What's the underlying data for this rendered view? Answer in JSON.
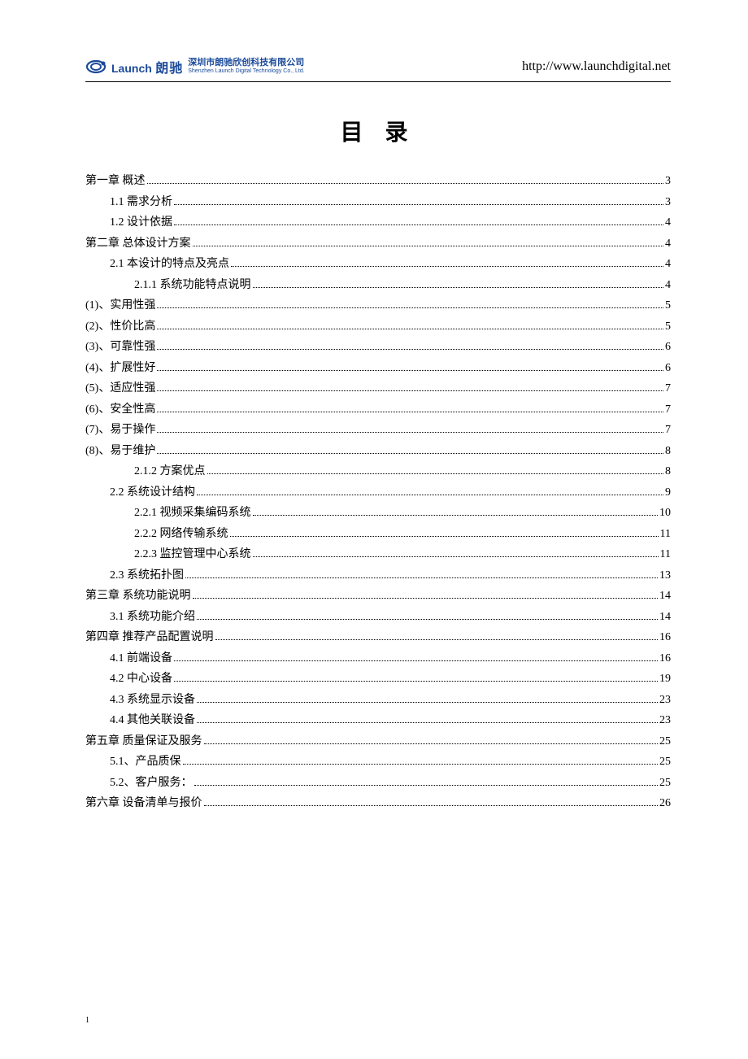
{
  "header": {
    "logo_launch": "Launch",
    "logo_brand": "朗驰",
    "company_cn": "深圳市朗驰欣创科技有限公司",
    "company_en": "Shenzhen Launch Digital Technology Co., Ltd.",
    "url": "http://www.launchdigital.net"
  },
  "title": "目 录",
  "page_number": "1",
  "toc": [
    {
      "label": "第一章    概述",
      "page": "3",
      "indent": 0
    },
    {
      "label": "1.1 需求分析",
      "page": "3",
      "indent": 1
    },
    {
      "label": "1.2 设计依据",
      "page": "4",
      "indent": 1
    },
    {
      "label": "第二章  总体设计方案",
      "page": "4",
      "indent": 0
    },
    {
      "label": "2.1 本设计的特点及亮点",
      "page": "4",
      "indent": 1
    },
    {
      "label": "2.1.1 系统功能特点说明",
      "page": "4",
      "indent": 2
    },
    {
      "label": "(1)、实用性强",
      "page": "5",
      "indent": 0
    },
    {
      "label": "(2)、性价比高",
      "page": "5",
      "indent": 0
    },
    {
      "label": "(3)、可靠性强",
      "page": "6",
      "indent": 0
    },
    {
      "label": "(4)、扩展性好",
      "page": "6",
      "indent": 0
    },
    {
      "label": "(5)、适应性强",
      "page": "7",
      "indent": 0
    },
    {
      "label": "(6)、安全性高",
      "page": "7",
      "indent": 0
    },
    {
      "label": "(7)、易于操作",
      "page": "7",
      "indent": 0
    },
    {
      "label": "(8)、易于维护",
      "page": "8",
      "indent": 0
    },
    {
      "label": "2.1.2  方案优点",
      "page": "8",
      "indent": 2
    },
    {
      "label": "2.2  系统设计结构",
      "page": "9",
      "indent": 1
    },
    {
      "label": "2.2.1    视频采集编码系统",
      "page": "10",
      "indent": 2
    },
    {
      "label": "2.2.2 网络传输系统",
      "page": "11",
      "indent": 2
    },
    {
      "label": "2.2.3 监控管理中心系统",
      "page": "11",
      "indent": 2
    },
    {
      "label": "2.3    系统拓扑图",
      "page": "13",
      "indent": 1
    },
    {
      "label": "第三章    系统功能说明",
      "page": "14",
      "indent": 0
    },
    {
      "label": "3.1  系统功能介绍",
      "page": "14",
      "indent": 1
    },
    {
      "label": "第四章    推荐产品配置说明",
      "page": "16",
      "indent": 0
    },
    {
      "label": "4.1  前端设备",
      "page": "16",
      "indent": 1
    },
    {
      "label": "4.2  中心设备",
      "page": "19",
      "indent": 1
    },
    {
      "label": "4.3  系统显示设备",
      "page": "23",
      "indent": 1
    },
    {
      "label": "4.4 其他关联设备",
      "page": "23",
      "indent": 1
    },
    {
      "label": "第五章    质量保证及服务",
      "page": "25",
      "indent": 0
    },
    {
      "label": "5.1、产品质保",
      "page": "25",
      "indent": 1
    },
    {
      "label": "5.2、客户服务：",
      "page": "25",
      "indent": 1
    },
    {
      "label": "第六章    设备清单与报价",
      "page": "26",
      "indent": 0
    }
  ]
}
